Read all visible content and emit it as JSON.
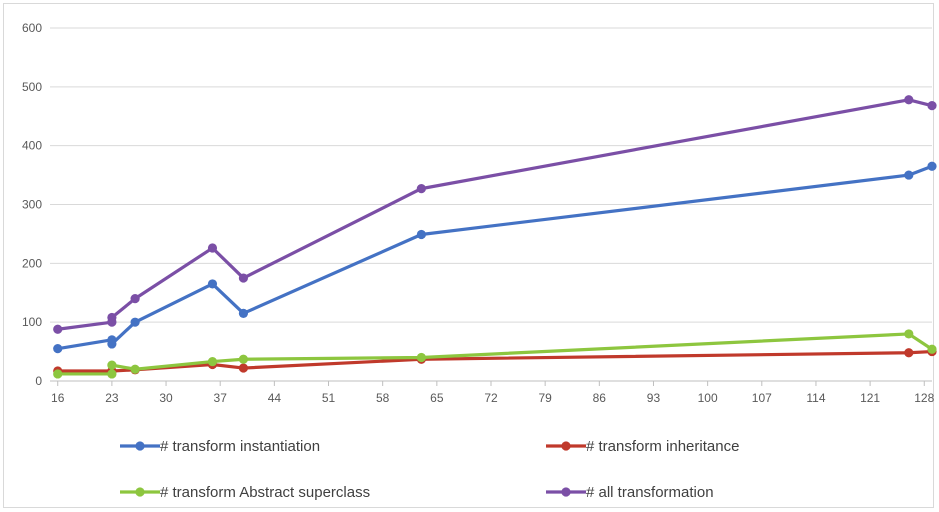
{
  "chart_data": {
    "type": "line",
    "title": "",
    "xlabel": "",
    "ylabel": "",
    "x": [
      16,
      23,
      23,
      26,
      36,
      40,
      63,
      126,
      129
    ],
    "x_ticks": [
      16,
      23,
      30,
      37,
      44,
      51,
      58,
      65,
      72,
      79,
      86,
      93,
      100,
      107,
      114,
      121,
      128
    ],
    "xlim": [
      15,
      129
    ],
    "y_ticks": [
      0,
      100,
      200,
      300,
      400,
      500,
      600
    ],
    "ylim": [
      0,
      600
    ],
    "grid": "horizontal",
    "legend_position": "bottom",
    "series": [
      {
        "name": "# transform instantiation",
        "color": "#4472C4",
        "values": [
          55,
          70,
          63,
          100,
          165,
          115,
          249,
          350,
          365
        ]
      },
      {
        "name": "# transform inheritance",
        "color": "#C0392B",
        "values": [
          17,
          17,
          17,
          19,
          28,
          22,
          37,
          48,
          50
        ]
      },
      {
        "name": "# transform Abstract superclass",
        "color": "#8DC63F",
        "values": [
          12,
          12,
          27,
          20,
          33,
          37,
          40,
          80,
          54
        ]
      },
      {
        "name": "# all transformation",
        "color": "#7B4FA6",
        "values": [
          88,
          100,
          108,
          140,
          226,
          175,
          327,
          478,
          468
        ]
      }
    ]
  }
}
